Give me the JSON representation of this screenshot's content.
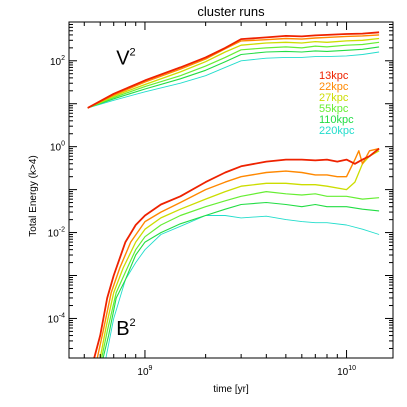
{
  "chart_data": {
    "type": "line",
    "title": "cluster runs",
    "xlabel": "time [yr]",
    "ylabel": "Total Energy (k>4)",
    "x_scale": "log",
    "y_scale": "log",
    "xlim": [
      420000000,
      17000000000
    ],
    "ylim": [
      1.2e-05,
      800
    ],
    "x_ticks": [
      {
        "value": 1000000000,
        "base": "10",
        "exp": "9"
      },
      {
        "value": 10000000000,
        "base": "10",
        "exp": "10"
      }
    ],
    "y_ticks": [
      {
        "value": 0.0001,
        "base": "10",
        "exp": "-4"
      },
      {
        "value": 0.01,
        "base": "10",
        "exp": "-2"
      },
      {
        "value": 1,
        "base": "10",
        "exp": "0"
      },
      {
        "value": 100,
        "base": "10",
        "exp": "2"
      }
    ],
    "annotations": [
      {
        "base": "V",
        "sup": "2",
        "x": 720000000,
        "y": 120
      },
      {
        "base": "B",
        "sup": "2",
        "x": 720000000,
        "y": 6e-05
      }
    ],
    "legend_position": "right",
    "series": [
      {
        "name": "13kpc",
        "color": "#ee2200",
        "v2": {
          "x": [
            520000000,
            700000000,
            1000000000,
            1500000000,
            2000000000,
            2500000000,
            3000000000,
            4000000000,
            5000000000,
            6000000000,
            7000000000,
            8000000000,
            10000000000,
            12000000000,
            14500000000
          ],
          "y": [
            8,
            17,
            35,
            70,
            120,
            200,
            320,
            350,
            380,
            370,
            390,
            400,
            420,
            430,
            460
          ]
        },
        "b2": {
          "x": [
            560000000,
            600000000,
            650000000,
            700000000,
            800000000,
            900000000,
            1000000000,
            1200000000,
            1500000000,
            2000000000,
            2500000000,
            3000000000,
            4000000000,
            5000000000,
            6000000000,
            7000000000,
            8000000000,
            9000000000,
            10000000000,
            11000000000,
            12000000000,
            13000000000,
            14500000000
          ],
          "y": [
            1.2e-05,
            4e-05,
            0.0003,
            0.001,
            0.006,
            0.015,
            0.025,
            0.045,
            0.07,
            0.15,
            0.25,
            0.35,
            0.45,
            0.5,
            0.5,
            0.48,
            0.5,
            0.45,
            0.5,
            0.4,
            0.5,
            0.6,
            0.9
          ]
        }
      },
      {
        "name": "22kpc",
        "color": "#ff8800",
        "v2": {
          "x": [
            520000000,
            700000000,
            1000000000,
            1500000000,
            2000000000,
            2500000000,
            3000000000,
            4000000000,
            5000000000,
            6000000000,
            7000000000,
            8000000000,
            10000000000,
            12000000000,
            14500000000
          ],
          "y": [
            8,
            16,
            32,
            64,
            110,
            190,
            290,
            310,
            330,
            320,
            340,
            350,
            370,
            380,
            400
          ]
        },
        "b2": {
          "x": [
            580000000,
            620000000,
            680000000,
            750000000,
            850000000,
            1000000000,
            1200000000,
            1500000000,
            2000000000,
            2500000000,
            3000000000,
            4000000000,
            5000000000,
            6000000000,
            7000000000,
            8000000000,
            9000000000,
            10000000000,
            11000000000,
            11500000000,
            12000000000,
            13000000000,
            14500000000
          ],
          "y": [
            1.2e-05,
            5e-05,
            0.0004,
            0.0015,
            0.006,
            0.018,
            0.03,
            0.05,
            0.1,
            0.15,
            0.2,
            0.25,
            0.27,
            0.25,
            0.22,
            0.22,
            0.2,
            0.2,
            0.5,
            0.8,
            0.4,
            0.8,
            0.9
          ]
        }
      },
      {
        "name": "27kpc",
        "color": "#ccdd00",
        "v2": {
          "x": [
            520000000,
            700000000,
            1000000000,
            1500000000,
            2000000000,
            2500000000,
            3000000000,
            4000000000,
            5000000000,
            6000000000,
            7000000000,
            8000000000,
            10000000000,
            12000000000,
            14500000000
          ],
          "y": [
            8,
            15,
            28,
            55,
            95,
            160,
            230,
            260,
            270,
            260,
            280,
            270,
            290,
            300,
            330
          ]
        },
        "b2": {
          "x": [
            600000000,
            640000000,
            700000000,
            780000000,
            900000000,
            1000000000,
            1200000000,
            1500000000,
            2000000000,
            2500000000,
            3000000000,
            4000000000,
            5000000000,
            6000000000,
            7000000000,
            8000000000,
            10000000000,
            11000000000,
            12000000000,
            13000000000,
            14500000000
          ],
          "y": [
            1.2e-05,
            6e-05,
            0.0004,
            0.0015,
            0.006,
            0.012,
            0.022,
            0.035,
            0.06,
            0.09,
            0.12,
            0.14,
            0.14,
            0.13,
            0.13,
            0.12,
            0.1,
            0.15,
            0.4,
            0.6,
            0.8
          ]
        }
      },
      {
        "name": "55kpc",
        "color": "#66ee33",
        "v2": {
          "x": [
            520000000,
            700000000,
            1000000000,
            1500000000,
            2000000000,
            2500000000,
            3000000000,
            4000000000,
            5000000000,
            6000000000,
            7000000000,
            8000000000,
            10000000000,
            12000000000,
            14500000000
          ],
          "y": [
            8,
            14,
            25,
            45,
            75,
            120,
            180,
            200,
            210,
            200,
            220,
            210,
            230,
            240,
            270
          ]
        },
        "b2": {
          "x": [
            610000000,
            650000000,
            720000000,
            800000000,
            900000000,
            1000000000,
            1200000000,
            1500000000,
            2000000000,
            2500000000,
            3000000000,
            4000000000,
            5000000000,
            6000000000,
            7000000000,
            8000000000,
            10000000000,
            12000000000,
            14500000000
          ],
          "y": [
            1.2e-05,
            5e-05,
            0.0004,
            0.0012,
            0.004,
            0.008,
            0.015,
            0.025,
            0.04,
            0.055,
            0.07,
            0.09,
            0.08,
            0.075,
            0.08,
            0.07,
            0.07,
            0.06,
            0.065
          ]
        }
      },
      {
        "name": "110kpc",
        "color": "#22dd44",
        "v2": {
          "x": [
            520000000,
            700000000,
            1000000000,
            1500000000,
            2000000000,
            2500000000,
            3000000000,
            4000000000,
            5000000000,
            6000000000,
            7000000000,
            8000000000,
            10000000000,
            12000000000,
            14500000000
          ],
          "y": [
            8,
            13,
            22,
            38,
            60,
            95,
            140,
            160,
            165,
            160,
            170,
            165,
            175,
            185,
            210
          ]
        },
        "b2": {
          "x": [
            620000000,
            660000000,
            720000000,
            800000000,
            900000000,
            1000000000,
            1200000000,
            1500000000,
            2000000000,
            2500000000,
            3000000000,
            4000000000,
            5000000000,
            6000000000,
            7000000000,
            8000000000,
            10000000000,
            12000000000,
            14500000000
          ],
          "y": [
            1.2e-05,
            4e-05,
            0.0003,
            0.0008,
            0.003,
            0.006,
            0.01,
            0.016,
            0.025,
            0.035,
            0.045,
            0.05,
            0.045,
            0.04,
            0.045,
            0.04,
            0.04,
            0.035,
            0.032
          ]
        }
      },
      {
        "name": "220kpc",
        "color": "#22ddcc",
        "v2": {
          "x": [
            520000000,
            700000000,
            1000000000,
            1500000000,
            2000000000,
            2500000000,
            3000000000,
            4000000000,
            5000000000,
            6000000000,
            7000000000,
            8000000000,
            10000000000,
            12000000000,
            14500000000
          ],
          "y": [
            8,
            12,
            19,
            30,
            45,
            70,
            100,
            115,
            120,
            120,
            125,
            125,
            130,
            140,
            160
          ]
        },
        "b2": {
          "x": [
            640000000,
            700000000,
            800000000,
            900000000,
            1000000000,
            1200000000,
            1500000000,
            2000000000,
            2500000000,
            3000000000,
            4000000000,
            5000000000,
            6000000000,
            7000000000,
            8000000000,
            10000000000,
            12000000000,
            14500000000
          ],
          "y": [
            1.2e-05,
            0.0001,
            0.0008,
            0.002,
            0.004,
            0.009,
            0.014,
            0.025,
            0.025,
            0.022,
            0.024,
            0.02,
            0.018,
            0.017,
            0.017,
            0.015,
            0.012,
            0.009
          ]
        }
      }
    ]
  }
}
